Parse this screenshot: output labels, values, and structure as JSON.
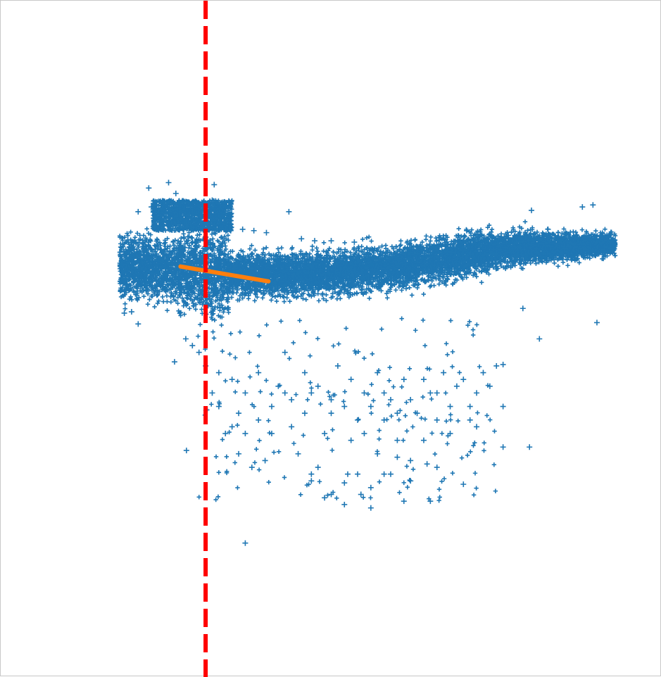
{
  "chart_data": {
    "type": "scatter",
    "title": "",
    "xlabel": "",
    "ylabel": "",
    "xlim": [
      0,
      1
    ],
    "ylim": [
      0,
      1
    ],
    "grid": false,
    "legend": "none",
    "colors": {
      "points": "#1f77b4",
      "fit_line": "#ff7f0e",
      "threshold_line": "#ff0000"
    },
    "series": [
      {
        "marker": "plus",
        "cluster_summary": {
          "x_range": [
            0.18,
            0.93
          ],
          "center_y_left": 0.61,
          "center_y_right": 0.64,
          "lower_scatter_y_range": [
            0.2,
            0.5
          ]
        },
        "points": [
          [
            0.224,
            0.723
          ],
          [
            0.254,
            0.731
          ],
          [
            0.265,
            0.715
          ],
          [
            0.228,
            0.695
          ],
          [
            0.208,
            0.688
          ],
          [
            0.198,
            0.54
          ],
          [
            0.208,
            0.522
          ],
          [
            0.187,
            0.538
          ],
          [
            0.263,
            0.466
          ],
          [
            0.281,
            0.335
          ],
          [
            0.37,
            0.198
          ],
          [
            0.436,
            0.688
          ],
          [
            0.323,
            0.728
          ],
          [
            0.32,
            0.705
          ],
          [
            0.332,
            0.695
          ],
          [
            0.348,
            0.66
          ],
          [
            0.366,
            0.662
          ],
          [
            0.383,
            0.66
          ],
          [
            0.402,
            0.657
          ],
          [
            0.455,
            0.648
          ],
          [
            0.475,
            0.645
          ],
          [
            0.5,
            0.645
          ],
          [
            0.535,
            0.643
          ],
          [
            0.57,
            0.63
          ],
          [
            0.62,
            0.628
          ],
          [
            0.705,
            0.66
          ],
          [
            0.74,
            0.655
          ],
          [
            0.768,
            0.653
          ],
          [
            0.803,
            0.69
          ],
          [
            0.828,
            0.662
          ],
          [
            0.845,
            0.645
          ],
          [
            0.88,
            0.695
          ],
          [
            0.896,
            0.698
          ],
          [
            0.902,
            0.524
          ],
          [
            0.815,
            0.5
          ],
          [
            0.79,
            0.545
          ],
          [
            0.75,
            0.46
          ],
          [
            0.76,
            0.462
          ],
          [
            0.8,
            0.34
          ],
          [
            0.71,
            0.4
          ],
          [
            0.72,
            0.37
          ],
          [
            0.76,
            0.34
          ],
          [
            0.7,
            0.285
          ],
          [
            0.65,
            0.26
          ],
          [
            0.66,
            0.31
          ],
          [
            0.62,
            0.32
          ],
          [
            0.6,
            0.35
          ],
          [
            0.58,
            0.38
          ],
          [
            0.56,
            0.28
          ],
          [
            0.56,
            0.25
          ],
          [
            0.525,
            0.3
          ],
          [
            0.52,
            0.287
          ],
          [
            0.54,
            0.3
          ],
          [
            0.58,
            0.3
          ],
          [
            0.61,
            0.26
          ],
          [
            0.47,
            0.29
          ],
          [
            0.48,
            0.31
          ],
          [
            0.49,
            0.36
          ],
          [
            0.5,
            0.39
          ],
          [
            0.53,
            0.35
          ],
          [
            0.55,
            0.36
          ],
          [
            0.57,
            0.33
          ],
          [
            0.45,
            0.33
          ],
          [
            0.44,
            0.37
          ],
          [
            0.43,
            0.42
          ],
          [
            0.42,
            0.43
          ],
          [
            0.41,
            0.36
          ],
          [
            0.4,
            0.32
          ],
          [
            0.38,
            0.31
          ],
          [
            0.36,
            0.33
          ],
          [
            0.35,
            0.37
          ],
          [
            0.34,
            0.36
          ],
          [
            0.33,
            0.4
          ],
          [
            0.32,
            0.42
          ],
          [
            0.31,
            0.46
          ],
          [
            0.3,
            0.48
          ],
          [
            0.29,
            0.49
          ],
          [
            0.28,
            0.5
          ],
          [
            0.33,
            0.45
          ],
          [
            0.35,
            0.44
          ],
          [
            0.37,
            0.42
          ],
          [
            0.39,
            0.45
          ],
          [
            0.43,
            0.48
          ],
          [
            0.46,
            0.45
          ],
          [
            0.48,
            0.43
          ],
          [
            0.51,
            0.46
          ],
          [
            0.53,
            0.44
          ],
          [
            0.55,
            0.42
          ],
          [
            0.57,
            0.45
          ],
          [
            0.59,
            0.41
          ],
          [
            0.61,
            0.44
          ],
          [
            0.63,
            0.39
          ],
          [
            0.65,
            0.42
          ],
          [
            0.67,
            0.45
          ],
          [
            0.69,
            0.43
          ],
          [
            0.72,
            0.42
          ],
          [
            0.73,
            0.45
          ],
          [
            0.66,
            0.38
          ],
          [
            0.64,
            0.35
          ],
          [
            0.68,
            0.36
          ],
          [
            0.52,
            0.255
          ],
          [
            0.545,
            0.27
          ],
          [
            0.5,
            0.27
          ],
          [
            0.47,
            0.3
          ],
          [
            0.49,
            0.265
          ],
          [
            0.62,
            0.29
          ],
          [
            0.645,
            0.315
          ],
          [
            0.59,
            0.3
          ],
          [
            0.6,
            0.325
          ],
          [
            0.36,
            0.39
          ],
          [
            0.37,
            0.36
          ],
          [
            0.39,
            0.38
          ],
          [
            0.41,
            0.4
          ],
          [
            0.44,
            0.41
          ],
          [
            0.46,
            0.39
          ],
          [
            0.47,
            0.42
          ],
          [
            0.5,
            0.41
          ],
          [
            0.52,
            0.4
          ],
          [
            0.54,
            0.38
          ],
          [
            0.56,
            0.4
          ],
          [
            0.58,
            0.42
          ],
          [
            0.6,
            0.39
          ],
          [
            0.62,
            0.41
          ],
          [
            0.64,
            0.44
          ],
          [
            0.66,
            0.42
          ],
          [
            0.68,
            0.4
          ],
          [
            0.7,
            0.44
          ],
          [
            0.71,
            0.38
          ],
          [
            0.74,
            0.43
          ],
          [
            0.76,
            0.4
          ]
        ]
      }
    ],
    "fit_line": {
      "x": [
        0.272,
        0.405
      ],
      "y": [
        0.607,
        0.585
      ]
    },
    "threshold_line": {
      "x": 0.31,
      "style": "dashed"
    }
  }
}
